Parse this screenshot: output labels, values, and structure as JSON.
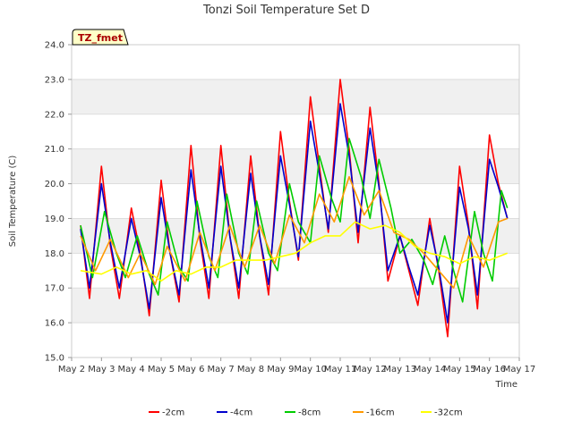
{
  "chart_data": {
    "type": "line",
    "title": "Tonzi Soil Temperature Set D",
    "xlabel": "Time",
    "ylabel": "Soil Temperature (C)",
    "badge": "TZ_fmet",
    "ylim": [
      15.0,
      24.0
    ],
    "xlim": [
      0,
      15
    ],
    "yticks": [
      "15.0",
      "16.0",
      "17.0",
      "18.0",
      "19.0",
      "20.0",
      "21.0",
      "22.0",
      "23.0",
      "24.0"
    ],
    "xticks": [
      "May 2",
      "May 3",
      "May 4",
      "May 5",
      "May 6",
      "May 7",
      "May 8",
      "May 9",
      "May 10",
      "May 11",
      "May 12",
      "May 13",
      "May 14",
      "May 15",
      "May 16",
      "May 17"
    ],
    "grid": "horizontal bands",
    "legend": "bottom",
    "series": [
      {
        "name": "-2cm",
        "color": "#ff0000",
        "x": [
          0.3,
          0.6,
          1.0,
          1.3,
          1.6,
          2.0,
          2.3,
          2.6,
          3.0,
          3.3,
          3.6,
          4.0,
          4.3,
          4.6,
          5.0,
          5.3,
          5.6,
          6.0,
          6.3,
          6.6,
          7.0,
          7.3,
          7.6,
          8.0,
          8.3,
          8.6,
          9.0,
          9.3,
          9.6,
          10.0,
          10.3,
          10.6,
          11.0,
          11.3,
          11.6,
          12.0,
          12.3,
          12.6,
          13.0,
          13.3,
          13.6,
          14.0,
          14.3,
          14.6
        ],
        "values": [
          18.8,
          16.7,
          20.5,
          18.2,
          16.7,
          19.3,
          18.0,
          16.2,
          20.1,
          18.0,
          16.6,
          21.1,
          18.4,
          16.7,
          21.1,
          18.5,
          16.7,
          20.8,
          18.5,
          16.8,
          21.5,
          19.5,
          17.8,
          22.5,
          20.5,
          18.6,
          23.0,
          21.0,
          18.3,
          22.2,
          20.0,
          17.2,
          18.5,
          17.5,
          16.5,
          19.0,
          17.5,
          15.6,
          20.5,
          18.8,
          16.4,
          21.4,
          20.0,
          19.0
        ]
      },
      {
        "name": "-4cm",
        "color": "#0000cc",
        "x": [
          0.3,
          0.6,
          1.0,
          1.3,
          1.6,
          2.0,
          2.3,
          2.6,
          3.0,
          3.3,
          3.6,
          4.0,
          4.3,
          4.6,
          5.0,
          5.3,
          5.6,
          6.0,
          6.3,
          6.6,
          7.0,
          7.3,
          7.6,
          8.0,
          8.3,
          8.6,
          9.0,
          9.3,
          9.6,
          10.0,
          10.3,
          10.6,
          11.0,
          11.3,
          11.6,
          12.0,
          12.3,
          12.6,
          13.0,
          13.3,
          13.6,
          14.0,
          14.3,
          14.6
        ],
        "values": [
          18.7,
          17.0,
          20.0,
          18.3,
          17.0,
          19.0,
          17.9,
          16.4,
          19.6,
          18.0,
          16.8,
          20.4,
          18.5,
          17.0,
          20.5,
          18.5,
          17.0,
          20.3,
          18.5,
          17.1,
          20.8,
          19.4,
          17.9,
          21.8,
          20.3,
          18.7,
          22.3,
          20.8,
          18.6,
          21.6,
          19.9,
          17.5,
          18.5,
          17.6,
          16.8,
          18.8,
          17.6,
          16.0,
          19.9,
          18.7,
          16.8,
          20.7,
          19.9,
          19.0
        ]
      },
      {
        "name": "-8cm",
        "color": "#00cc00",
        "x": [
          0.3,
          0.7,
          1.1,
          1.5,
          1.8,
          2.2,
          2.6,
          2.9,
          3.2,
          3.6,
          3.9,
          4.2,
          4.6,
          4.9,
          5.2,
          5.6,
          5.9,
          6.2,
          6.6,
          6.9,
          7.3,
          7.6,
          8.0,
          8.3,
          8.7,
          9.0,
          9.3,
          9.7,
          10.0,
          10.3,
          10.7,
          11.0,
          11.4,
          11.8,
          12.1,
          12.5,
          12.8,
          13.1,
          13.5,
          13.8,
          14.1,
          14.4,
          14.6
        ],
        "values": [
          18.8,
          17.3,
          19.2,
          18.0,
          17.3,
          18.5,
          17.4,
          16.8,
          18.9,
          17.6,
          17.2,
          19.5,
          17.9,
          17.3,
          19.7,
          18.0,
          17.4,
          19.5,
          18.0,
          17.5,
          20.0,
          18.9,
          18.3,
          20.8,
          19.6,
          18.9,
          21.3,
          20.2,
          19.0,
          20.7,
          19.3,
          18.0,
          18.4,
          17.8,
          17.1,
          18.5,
          17.5,
          16.6,
          19.2,
          18.0,
          17.2,
          19.8,
          19.3
        ]
      },
      {
        "name": "-16cm",
        "color": "#ff9900",
        "x": [
          0.3,
          0.8,
          1.3,
          1.9,
          2.3,
          2.8,
          3.2,
          3.8,
          4.3,
          4.8,
          5.3,
          5.8,
          6.3,
          6.8,
          7.3,
          7.8,
          8.3,
          8.8,
          9.3,
          9.8,
          10.3,
          10.8,
          11.3,
          11.8,
          12.3,
          12.8,
          13.3,
          13.8,
          14.3,
          14.6
        ],
        "values": [
          18.5,
          17.5,
          18.4,
          17.3,
          18.0,
          17.1,
          18.2,
          17.2,
          18.6,
          17.5,
          18.8,
          17.6,
          18.8,
          17.7,
          19.1,
          18.3,
          19.7,
          18.9,
          20.2,
          19.1,
          19.8,
          18.6,
          18.4,
          18.0,
          17.5,
          17.0,
          18.5,
          17.6,
          18.9,
          19.0
        ]
      },
      {
        "name": "-32cm",
        "color": "#ffff00",
        "x": [
          0.3,
          1.0,
          1.5,
          2.0,
          2.5,
          3.0,
          3.5,
          4.0,
          4.5,
          5.0,
          5.5,
          6.0,
          6.5,
          7.0,
          7.5,
          8.0,
          8.5,
          9.0,
          9.5,
          10.0,
          10.5,
          11.0,
          11.5,
          12.0,
          12.5,
          13.0,
          13.5,
          14.0,
          14.6
        ],
        "values": [
          17.5,
          17.4,
          17.6,
          17.4,
          17.5,
          17.2,
          17.5,
          17.4,
          17.6,
          17.6,
          17.8,
          17.8,
          17.8,
          17.9,
          18.0,
          18.3,
          18.5,
          18.5,
          18.9,
          18.7,
          18.8,
          18.6,
          18.2,
          18.0,
          17.9,
          17.7,
          17.9,
          17.8,
          18.0
        ]
      }
    ]
  }
}
